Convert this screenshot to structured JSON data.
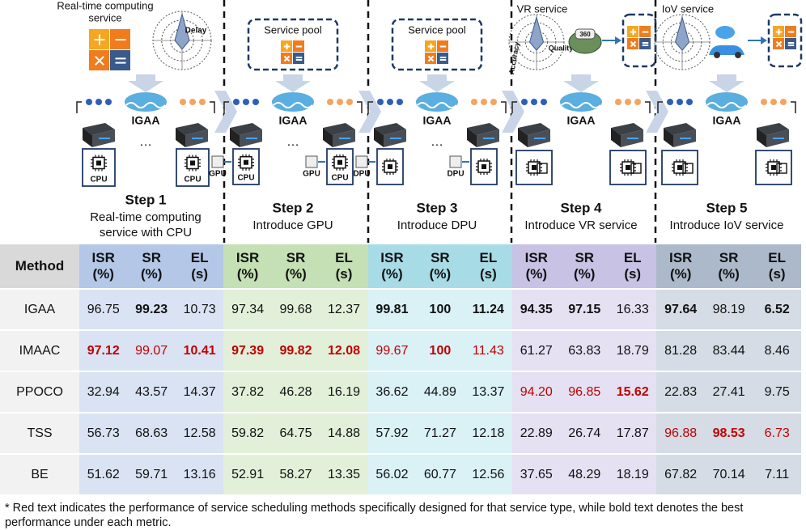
{
  "diagram": {
    "agent": "IGAA",
    "ellipsis": "…",
    "steps": [
      {
        "title": "Step 1",
        "subtitle": [
          "Real-time computing",
          "service with CPU"
        ],
        "service": [
          "Real-time computing",
          "service"
        ],
        "radar_labels": [
          "Delay"
        ],
        "chip": "CPU"
      },
      {
        "title": "Step 2",
        "subtitle": [
          "Introduce GPU"
        ],
        "pool": "Service pool",
        "accel": "GPU",
        "chip": "CPU"
      },
      {
        "title": "Step 3",
        "subtitle": [
          "Introduce DPU"
        ],
        "pool": "Service pool",
        "accel": "DPU"
      },
      {
        "title": "Step 4",
        "subtitle": [
          "Introduce VR service"
        ],
        "service": [
          "VR service"
        ],
        "radar_labels": [
          "Accuracy",
          "Quality"
        ],
        "badge": "360"
      },
      {
        "title": "Step 5",
        "subtitle": [
          "Introduce IoV service"
        ],
        "service": [
          "IoV service"
        ]
      }
    ]
  },
  "table": {
    "method_header": "Method",
    "metrics": [
      {
        "name": "ISR",
        "unit": "(%)"
      },
      {
        "name": "SR",
        "unit": "(%)"
      },
      {
        "name": "EL",
        "unit": "(s)"
      }
    ],
    "group_colors": [
      [
        "#b4c7e7",
        "#dae3f3"
      ],
      [
        "#c5e0b4",
        "#e2f0d9"
      ],
      [
        "#a7dbe6",
        "#daf1f6"
      ],
      [
        "#c8c2e4",
        "#e5e1f3"
      ],
      [
        "#acb9ca",
        "#d6dce5"
      ]
    ],
    "method_colors": [
      "#d9d9d9",
      "#f2f2f2"
    ],
    "rows": [
      {
        "method": "IGAA",
        "values": [
          "96.75",
          "99.23",
          "10.73",
          "97.34",
          "99.68",
          "12.37",
          "99.81",
          "100",
          "11.24",
          "94.35",
          "97.15",
          "16.33",
          "97.64",
          "98.19",
          "6.52"
        ]
      },
      {
        "method": "IMAAC",
        "values": [
          "97.12",
          "99.07",
          "10.41",
          "97.39",
          "99.82",
          "12.08",
          "99.67",
          "100",
          "11.43",
          "61.27",
          "63.83",
          "18.79",
          "81.28",
          "83.44",
          "8.46"
        ]
      },
      {
        "method": "PPOCO",
        "values": [
          "32.94",
          "43.57",
          "14.37",
          "37.82",
          "46.28",
          "16.19",
          "36.62",
          "44.89",
          "13.37",
          "94.20",
          "96.85",
          "15.62",
          "22.83",
          "27.41",
          "9.75"
        ]
      },
      {
        "method": "TSS",
        "values": [
          "56.73",
          "68.63",
          "12.58",
          "59.82",
          "64.75",
          "14.88",
          "57.92",
          "71.27",
          "12.18",
          "22.89",
          "26.74",
          "17.87",
          "96.88",
          "98.53",
          "6.73"
        ]
      },
      {
        "method": "BE",
        "values": [
          "51.62",
          "59.71",
          "13.16",
          "52.91",
          "58.27",
          "13.35",
          "56.02",
          "60.77",
          "12.56",
          "37.65",
          "48.29",
          "18.19",
          "67.82",
          "70.14",
          "7.11"
        ]
      }
    ],
    "bold": [
      [
        0,
        1
      ],
      [
        0,
        6
      ],
      [
        0,
        7
      ],
      [
        0,
        8
      ],
      [
        0,
        9
      ],
      [
        0,
        10
      ],
      [
        0,
        12
      ],
      [
        0,
        14
      ],
      [
        1,
        0
      ],
      [
        1,
        2
      ],
      [
        1,
        3
      ],
      [
        1,
        4
      ],
      [
        1,
        5
      ],
      [
        1,
        7
      ],
      [
        2,
        11
      ],
      [
        3,
        13
      ]
    ],
    "red": [
      [
        1,
        0
      ],
      [
        1,
        1
      ],
      [
        1,
        2
      ],
      [
        1,
        3
      ],
      [
        1,
        4
      ],
      [
        1,
        5
      ],
      [
        1,
        6
      ],
      [
        1,
        7
      ],
      [
        1,
        8
      ],
      [
        2,
        9
      ],
      [
        2,
        10
      ],
      [
        2,
        11
      ],
      [
        3,
        12
      ],
      [
        3,
        13
      ],
      [
        3,
        14
      ]
    ]
  },
  "note": "* Red text indicates the performance of service scheduling methods specifically designed for that service type, while bold text denotes the best performance under each metric."
}
